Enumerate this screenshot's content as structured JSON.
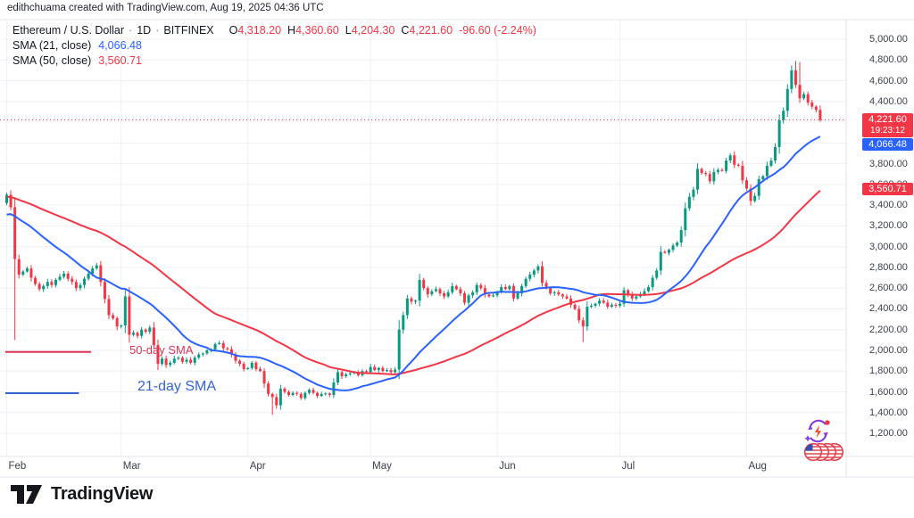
{
  "header": {
    "attribution": "edithchuama created with TradingView.com, Aug 19, 2025 04:36 UTC"
  },
  "legend": {
    "symbol": "Ethereum / U.S. Dollar",
    "sep": "·",
    "interval": "1D",
    "exchange": "BITFINEX",
    "ohlc": [
      {
        "k": "O",
        "v": "4,318.20"
      },
      {
        "k": "H",
        "v": "4,360.60"
      },
      {
        "k": "L",
        "v": "4,204.30"
      },
      {
        "k": "C",
        "v": "4,221.60"
      }
    ],
    "change": "-96.60 (-2.24%)",
    "sma21_label": "SMA (21, close)",
    "sma21_value": "4,066.48",
    "sma50_label": "SMA (50, close)",
    "sma50_value": "3,560.71"
  },
  "price_axis": {
    "last_price_label": "4,221.60",
    "countdown": "19:23:12",
    "sma21_label": "4,066.48",
    "sma50_label": "3,560.71"
  },
  "annotations": {
    "sma50_key_label": "50-day SMA",
    "sma21_key_label": "21-day SMA"
  },
  "footer": {
    "brand": "TradingView"
  },
  "colors": {
    "up": "#089981",
    "down": "#f23645",
    "sma21": "#2962ff",
    "sma50": "#f23645",
    "grid": "#eef0f6",
    "border": "#e4e6ee",
    "annotation_red": "#dc3558",
    "annotation_blue": "#3565d0"
  },
  "chart_data": {
    "type": "candlestick",
    "symbol": "ETH/USD",
    "interval": "1D",
    "exchange": "BITFINEX",
    "ylim": [
      1200,
      5000
    ],
    "y_ticks": [
      1200,
      1400,
      1600,
      1800,
      2000,
      2200,
      2400,
      2600,
      2800,
      3000,
      3200,
      3400,
      3600,
      3800,
      4000,
      4200,
      4400,
      4600,
      4800,
      5000
    ],
    "months": [
      {
        "label": "Feb",
        "index": 0
      },
      {
        "label": "Mar",
        "index": 28
      },
      {
        "label": "Apr",
        "index": 59
      },
      {
        "label": "May",
        "index": 89
      },
      {
        "label": "Jun",
        "index": 120
      },
      {
        "label": "Jul",
        "index": 150
      },
      {
        "label": "Aug",
        "index": 181
      }
    ],
    "first_open": 3420,
    "closes": [
      3500,
      3380,
      2880,
      2730,
      2760,
      2790,
      2700,
      2640,
      2590,
      2620,
      2660,
      2630,
      2680,
      2710,
      2740,
      2690,
      2660,
      2600,
      2630,
      2690,
      2740,
      2790,
      2820,
      2660,
      2495,
      2340,
      2310,
      2230,
      2240,
      2520,
      2150,
      2170,
      2140,
      2200,
      2180,
      2220,
      2050,
      1870,
      1920,
      1860,
      1880,
      1920,
      1930,
      1890,
      1910,
      1880,
      1930,
      1960,
      1970,
      2000,
      2010,
      2060,
      2070,
      2020,
      2010,
      1960,
      1900,
      1870,
      1820,
      1830,
      1880,
      1820,
      1800,
      1680,
      1580,
      1550,
      1470,
      1630,
      1600,
      1570,
      1590,
      1580,
      1540,
      1590,
      1620,
      1590,
      1560,
      1580,
      1585,
      1570,
      1690,
      1790,
      1750,
      1770,
      1780,
      1790,
      1760,
      1800,
      1790,
      1840,
      1810,
      1830,
      1800,
      1810,
      1790,
      1815,
      2200,
      2340,
      2500,
      2470,
      2480,
      2680,
      2600,
      2540,
      2570,
      2590,
      2550,
      2520,
      2560,
      2620,
      2590,
      2550,
      2460,
      2530,
      2560,
      2630,
      2600,
      2540,
      2520,
      2530,
      2560,
      2610,
      2590,
      2620,
      2500,
      2550,
      2620,
      2690,
      2730,
      2770,
      2810,
      2650,
      2600,
      2550,
      2560,
      2540,
      2520,
      2500,
      2440,
      2400,
      2290,
      2230,
      2420,
      2430,
      2450,
      2480,
      2460,
      2420,
      2440,
      2430,
      2450,
      2580,
      2540,
      2500,
      2520,
      2540,
      2570,
      2610,
      2700,
      2770,
      2950,
      2940,
      2970,
      3010,
      3040,
      3160,
      3370,
      3480,
      3550,
      3750,
      3710,
      3700,
      3630,
      3720,
      3740,
      3730,
      3830,
      3880,
      3790,
      3780,
      3640,
      3560,
      3440,
      3490,
      3650,
      3680,
      3780,
      3830,
      3960,
      4220,
      4310,
      4520,
      4700,
      4560,
      4430,
      4470,
      4390,
      4350,
      4318.2,
      4221.6
    ],
    "candle_overrides": {
      "2": {
        "lo": 2100
      },
      "37": {
        "lo": 1810
      },
      "65": {
        "lo": 1380
      },
      "141": {
        "lo": 2080
      },
      "193": {
        "hi": 4790
      },
      "194": {
        "hi": 4780
      },
      "199": {
        "hi": 4360.6,
        "lo": 4204.3
      }
    },
    "last_price": 4221.6,
    "sma": [
      {
        "period": 21,
        "value": 4066.48
      },
      {
        "period": 50,
        "value": 3560.71
      }
    ],
    "annotation_segments": [
      {
        "name": "sma50-key-line",
        "price": 1985,
        "i0": 0,
        "i1": 21,
        "color": "#dc3558"
      },
      {
        "name": "sma21-key-line",
        "price": 1587,
        "i0": 0,
        "i1": 18,
        "color": "#3565d0"
      }
    ]
  }
}
